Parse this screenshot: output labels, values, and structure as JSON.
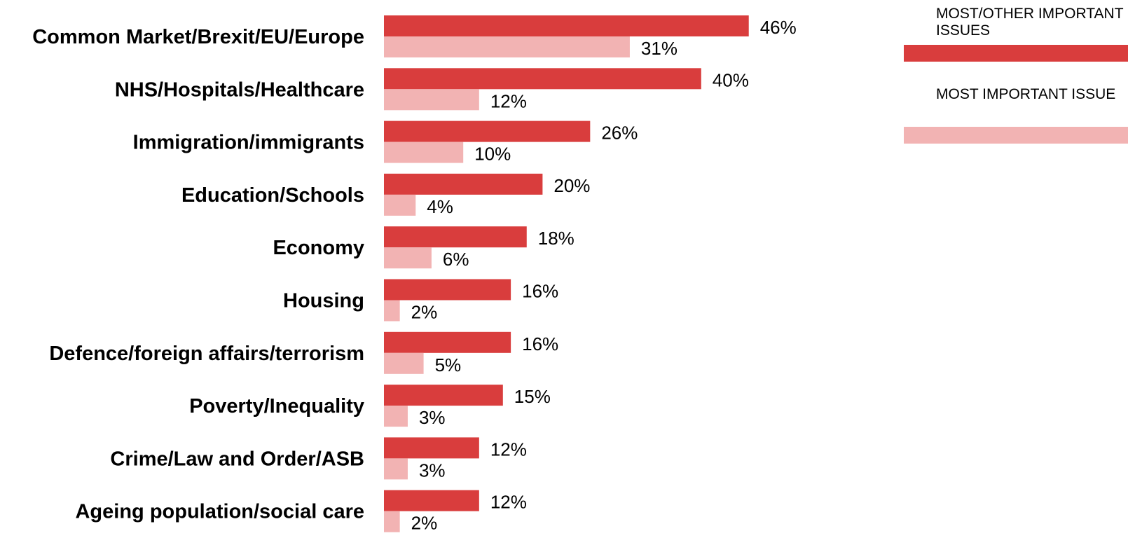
{
  "colors": {
    "primary": "#d93d3d",
    "secondary": "#f2b3b3"
  },
  "legend": {
    "items": [
      {
        "label": "MOST/OTHER IMPORTANT ISSUES",
        "color": "#d93d3d"
      },
      {
        "label": "MOST IMPORTANT ISSUE",
        "color": "#f2b3b3"
      }
    ]
  },
  "chart_data": {
    "type": "bar",
    "orientation": "horizontal",
    "title": "",
    "xlabel": "",
    "ylabel": "",
    "xlim": [
      0,
      50
    ],
    "grid": false,
    "legend_position": "top-right",
    "value_suffix": "%",
    "categories": [
      "Common Market/Brexit/EU/Europe",
      "NHS/Hospitals/Healthcare",
      "Immigration/immigrants",
      "Education/Schools",
      "Economy",
      "Housing",
      "Defence/foreign affairs/terrorism",
      "Poverty/Inequality",
      "Crime/Law and Order/ASB",
      "Ageing population/social care"
    ],
    "series": [
      {
        "name": "MOST/OTHER IMPORTANT ISSUES",
        "values": [
          46,
          40,
          26,
          20,
          18,
          16,
          16,
          15,
          12,
          12
        ]
      },
      {
        "name": "MOST IMPORTANT ISSUE",
        "values": [
          31,
          12,
          10,
          4,
          6,
          2,
          5,
          3,
          3,
          2
        ]
      }
    ]
  }
}
